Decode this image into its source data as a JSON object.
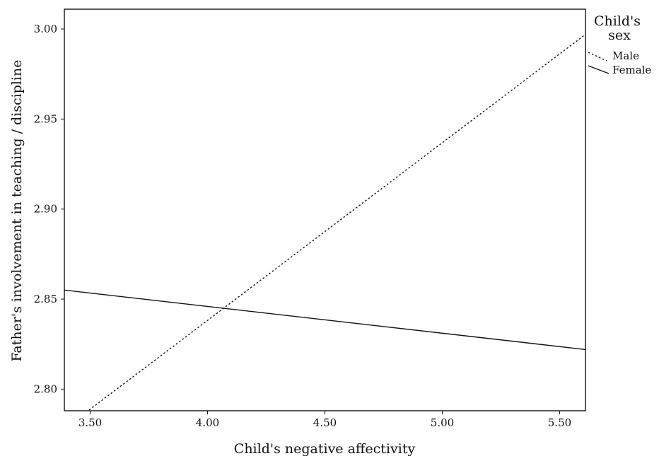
{
  "chart_data": {
    "type": "line",
    "xlabel": "Child's negative affectivity",
    "ylabel": "Father's involvement in teaching / discipline",
    "xlim": [
      3.39,
      5.61
    ],
    "ylim": [
      2.788,
      3.011
    ],
    "x_ticks": [
      "3.50",
      "4.00",
      "4.50",
      "5.00",
      "5.50"
    ],
    "y_ticks": [
      "2.80",
      "2.85",
      "2.90",
      "2.95",
      "3.00"
    ],
    "grid": false,
    "legend": {
      "title": "Child's sex",
      "title_lines": [
        "Child's",
        "sex"
      ],
      "placement": "right",
      "entries": [
        "Male",
        "Female"
      ]
    },
    "series": [
      {
        "name": "Male",
        "style": "dotted",
        "color": "#111111",
        "x": [
          3.39,
          5.61
        ],
        "y": [
          2.778,
          2.997
        ]
      },
      {
        "name": "Female",
        "style": "solid",
        "color": "#111111",
        "x": [
          3.39,
          5.61
        ],
        "y": [
          2.855,
          2.822
        ]
      }
    ]
  }
}
